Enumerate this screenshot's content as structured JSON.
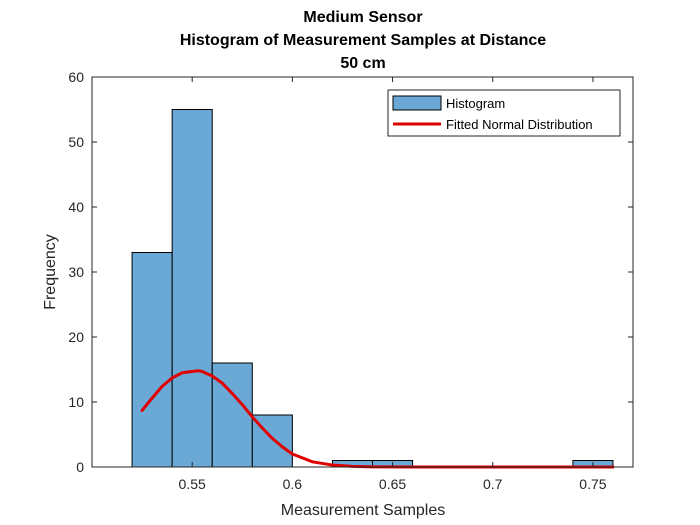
{
  "chart_data": {
    "type": "bar",
    "title_lines": [
      "Medium Sensor",
      "Histogram of Measurement Samples at Distance",
      "50 cm"
    ],
    "xlabel": "Measurement Samples",
    "ylabel": "Frequency",
    "xlim": [
      0.5,
      0.77
    ],
    "ylim": [
      0,
      60
    ],
    "xticks": [
      0.55,
      0.6,
      0.65,
      0.7,
      0.75
    ],
    "xtick_labels": [
      "0.55",
      "0.6",
      "0.65",
      "0.7",
      "0.75"
    ],
    "yticks": [
      0,
      10,
      20,
      30,
      40,
      50,
      60
    ],
    "ytick_labels": [
      "0",
      "10",
      "20",
      "30",
      "40",
      "50",
      "60"
    ],
    "grid": false,
    "legend_position": "top-right",
    "series": [
      {
        "name": "Histogram",
        "kind": "histogram",
        "color": "#6aa8d6",
        "edge_color": "#000000",
        "bins": [
          {
            "x0": 0.52,
            "x1": 0.54,
            "count": 33
          },
          {
            "x0": 0.54,
            "x1": 0.56,
            "count": 55
          },
          {
            "x0": 0.56,
            "x1": 0.58,
            "count": 16
          },
          {
            "x0": 0.58,
            "x1": 0.6,
            "count": 8
          },
          {
            "x0": 0.62,
            "x1": 0.64,
            "count": 1
          },
          {
            "x0": 0.64,
            "x1": 0.66,
            "count": 1
          },
          {
            "x0": 0.74,
            "x1": 0.76,
            "count": 1
          }
        ]
      },
      {
        "name": "Fitted Normal Distribution",
        "kind": "line",
        "color": "#e00000",
        "x": [
          0.525,
          0.53,
          0.535,
          0.54,
          0.545,
          0.55,
          0.553,
          0.555,
          0.56,
          0.565,
          0.57,
          0.575,
          0.58,
          0.585,
          0.59,
          0.595,
          0.6,
          0.61,
          0.62,
          0.63,
          0.64,
          0.66,
          0.7,
          0.76
        ],
        "y": [
          8.7,
          10.6,
          12.4,
          13.7,
          14.5,
          14.7,
          14.8,
          14.7,
          14.0,
          12.9,
          11.3,
          9.6,
          7.7,
          6.0,
          4.4,
          3.1,
          2.0,
          0.8,
          0.3,
          0.1,
          0.02,
          0,
          0,
          0
        ]
      }
    ]
  }
}
